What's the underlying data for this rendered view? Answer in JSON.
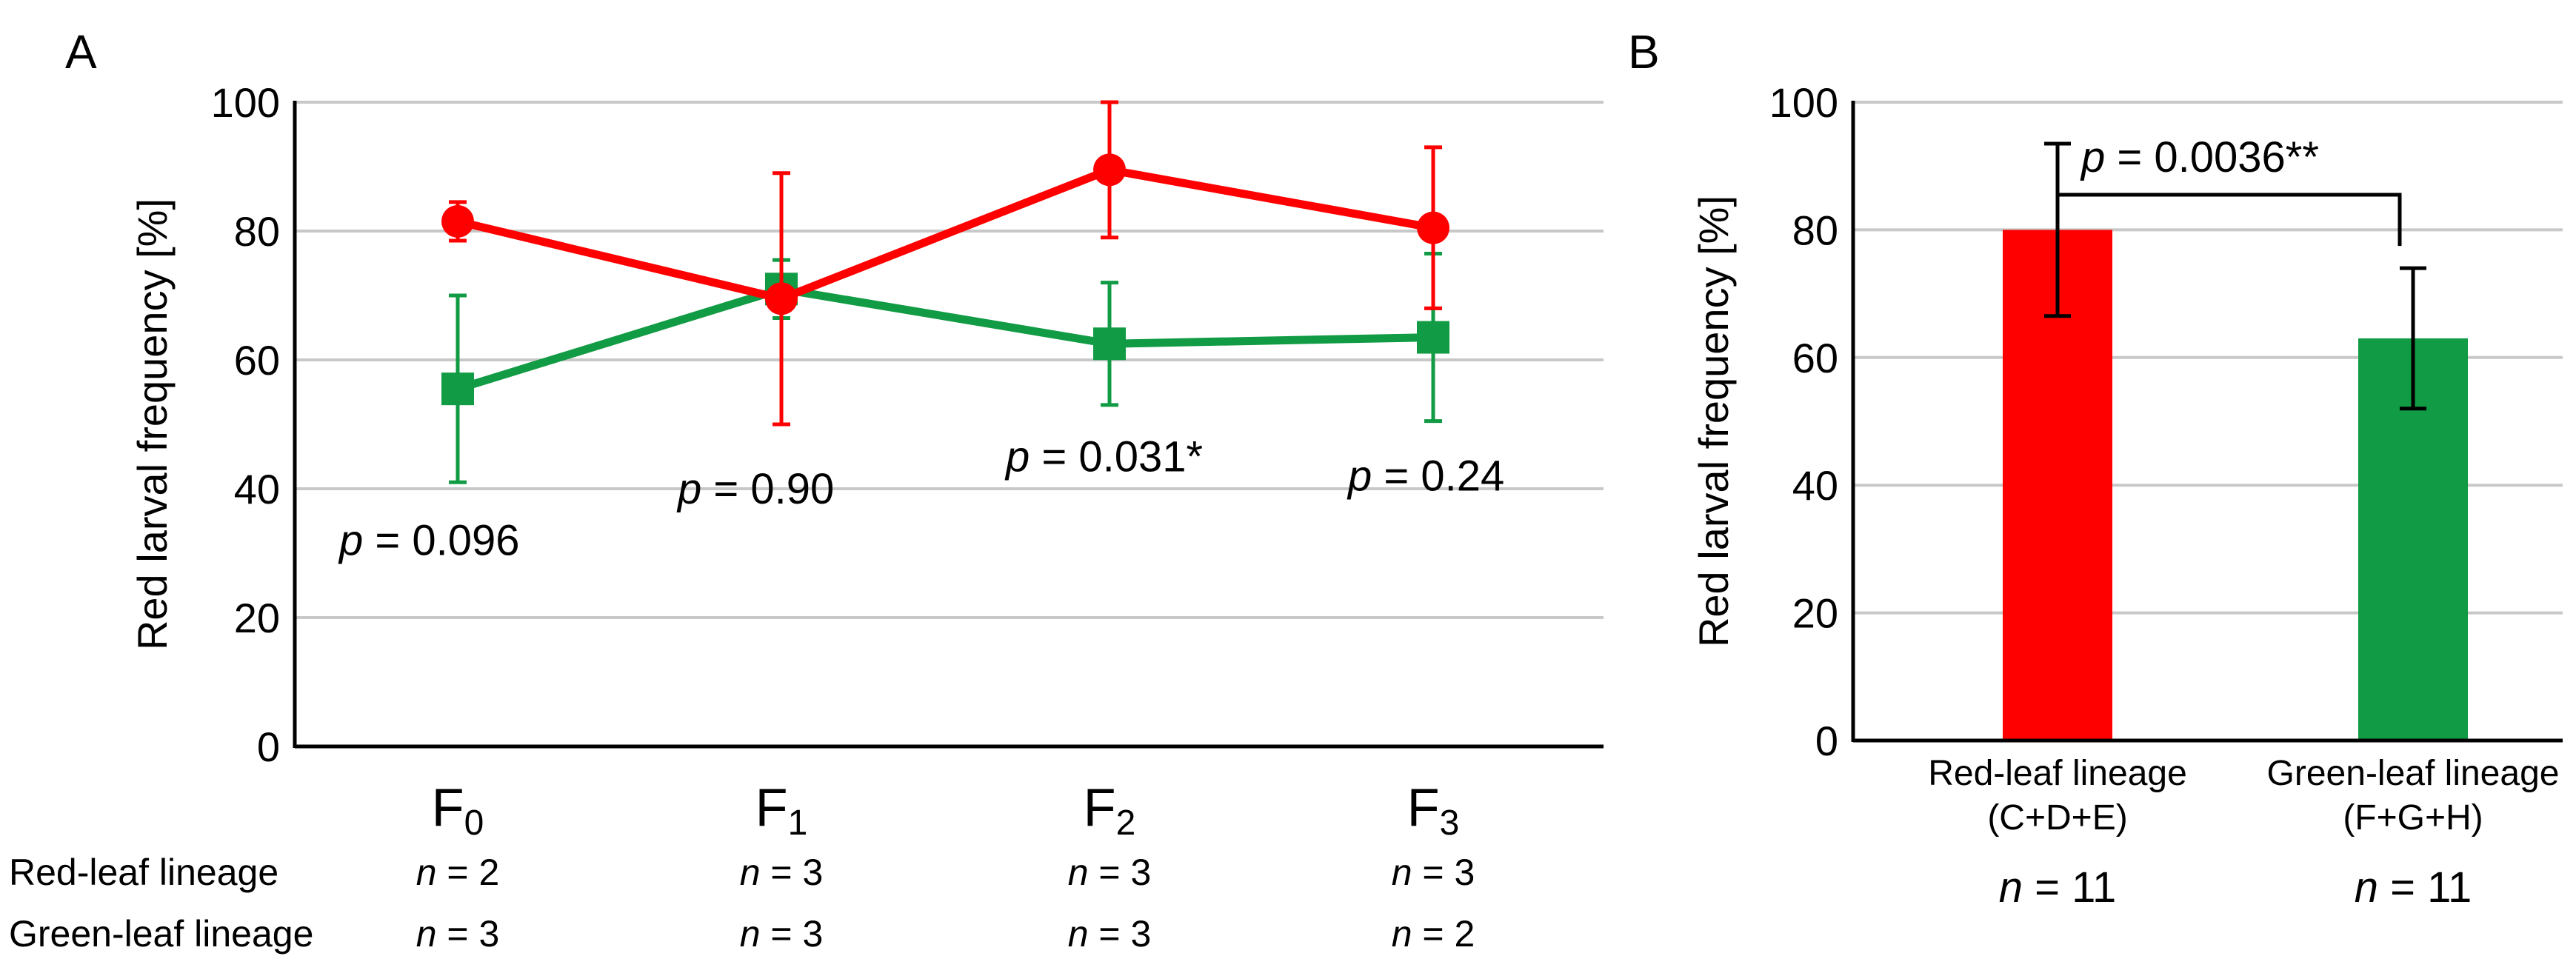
{
  "colors": {
    "red": "#ff0000",
    "green": "#119b44",
    "grid": "#c8c8c8",
    "axis": "#000000"
  },
  "chart_data": [
    {
      "panel": "A",
      "type": "line",
      "ylabel": "Red larval frequency [%]",
      "ylim": [
        0,
        100
      ],
      "yticks": [
        0,
        20,
        40,
        60,
        80,
        100
      ],
      "ytick_labels": [
        "0",
        "20",
        "40",
        "60",
        "80",
        "100"
      ],
      "categories": [
        {
          "base": "F",
          "sub": "0"
        },
        {
          "base": "F",
          "sub": "1"
        },
        {
          "base": "F",
          "sub": "2"
        },
        {
          "base": "F",
          "sub": "3"
        }
      ],
      "series": [
        {
          "name": "Red-leaf lineage",
          "color": "red",
          "marker": "circle",
          "values": [
            81.5,
            69.5,
            89.5,
            80.5
          ],
          "err": [
            3,
            19.5,
            10.5,
            12.5
          ]
        },
        {
          "name": "Green-leaf lineage",
          "color": "green",
          "marker": "square",
          "values": [
            55.5,
            71,
            62.5,
            63.5
          ],
          "err": [
            14.5,
            4.5,
            9.5,
            13
          ]
        }
      ],
      "p_values": [
        {
          "p": "p",
          "text": " = 0.096",
          "x_index": 0,
          "y": 32
        },
        {
          "p": "p",
          "text": " = 0.90",
          "x_index": 1,
          "y": 40
        },
        {
          "p": "p",
          "text": " = 0.031*",
          "x_index": 2,
          "y": 45
        },
        {
          "p": "p",
          "text": " = 0.24",
          "x_index": 3,
          "y": 42
        }
      ],
      "n_rows": [
        {
          "label": "Red-leaf lineage",
          "n_prefix": "n",
          "n_values": [
            " = 2",
            " = 3",
            " = 3",
            " = 3"
          ]
        },
        {
          "label": "Green-leaf lineage",
          "n_prefix": "n",
          "n_values": [
            " = 3",
            " = 3",
            " = 3",
            " = 2"
          ]
        }
      ]
    },
    {
      "panel": "B",
      "type": "bar",
      "ylabel": "Red larval frequency [%]",
      "ylim": [
        0,
        100
      ],
      "yticks": [
        0,
        20,
        40,
        60,
        80,
        100
      ],
      "ytick_labels": [
        "0",
        "20",
        "40",
        "60",
        "80",
        "100"
      ],
      "categories": [
        {
          "line1": "Red-leaf lineage",
          "line2": "(C+D+E)",
          "n_prefix": "n",
          "n_value": " = 11",
          "color": "red"
        },
        {
          "line1": "Green-leaf lineage",
          "line2": "(F+G+H)",
          "n_prefix": "n",
          "n_value": " = 11",
          "color": "green"
        }
      ],
      "values": [
        80,
        63
      ],
      "err": [
        13.5,
        11
      ],
      "significance": {
        "p": "p",
        "text": " = 0.0036**"
      }
    }
  ]
}
